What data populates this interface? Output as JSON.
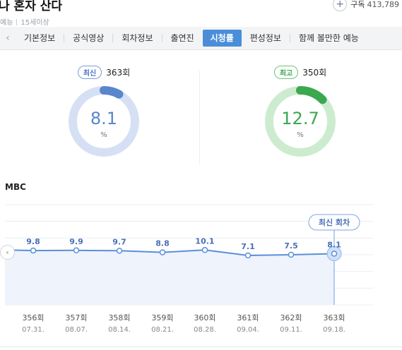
{
  "header": {
    "title": "나 혼자 산다",
    "genre": "예능",
    "age_rating": "15세이상",
    "subscribe_label": "구독",
    "subscribe_count": "413,789"
  },
  "tabs": {
    "prev_glyph": "‹",
    "items": [
      "기본정보",
      "공식영상",
      "회차정보",
      "출연진",
      "시청률",
      "편성정보",
      "함께 볼만한 예능"
    ],
    "active_index": 4
  },
  "ratings": {
    "latest": {
      "badge": "최신",
      "episode": "363회",
      "value": "8.1",
      "unit": "%",
      "color": "#5a86cc",
      "track": "#d6e0f5"
    },
    "best": {
      "badge": "최고",
      "episode": "350회",
      "value": "12.7",
      "unit": "%",
      "color": "#3aa84f",
      "track": "#cdeccf"
    }
  },
  "broadcaster": "MBC",
  "chart_prev_glyph": "‹",
  "chart_data": {
    "type": "line",
    "title": "",
    "xlabel": "",
    "ylabel": "",
    "x": [
      "356회",
      "357회",
      "358회",
      "359회",
      "360회",
      "361회",
      "362회",
      "363회"
    ],
    "dates": [
      "07.31.",
      "08.07.",
      "08.14.",
      "08.21.",
      "08.28.",
      "09.04.",
      "09.11.",
      "09.18."
    ],
    "series": [
      {
        "values": [
          9.8,
          9.9,
          9.7,
          8.8,
          10.1,
          7.1,
          7.5,
          8.1
        ]
      }
    ],
    "y_labels": [
      "9.8",
      "9.9",
      "9.7",
      "8.8",
      "10.1",
      "7.1",
      "7.5",
      "8.1"
    ],
    "highlight_label": "최신 회차",
    "highlight_index": 7,
    "ylim": [
      -20,
      35
    ],
    "line_color": "#5b8fd9",
    "fill_color": "#eef3fc",
    "grid": true
  }
}
